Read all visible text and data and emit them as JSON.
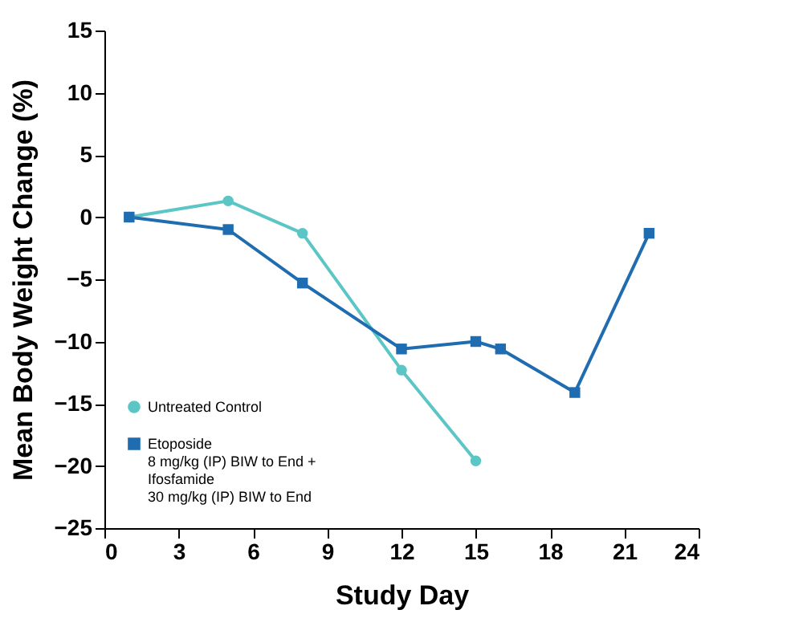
{
  "chart_data": {
    "type": "line",
    "xlabel": "Study Day",
    "ylabel": "Mean Body Weight Change (%)",
    "xlim": [
      0,
      24
    ],
    "xticks": [
      0,
      3,
      6,
      9,
      12,
      15,
      18,
      21,
      24
    ],
    "ylim": [
      -25,
      15
    ],
    "yticks": [
      -25,
      -20,
      -15,
      -10,
      -5,
      0,
      5,
      10,
      15
    ],
    "grid": false,
    "legend": "bottom left",
    "line_style": "solid",
    "series": [
      {
        "name": "Untreated Control",
        "color": "#5cc5c5",
        "marker": "circle",
        "x": [
          1,
          5,
          8,
          12,
          15
        ],
        "values": [
          0,
          1.3,
          -1.3,
          -12.3,
          -19.6
        ]
      },
      {
        "name": "Etoposide\n8 mg/kg (IP) BIW to End +\nIfosfamide\n30 mg/kg (IP) BIW to End",
        "color": "#1f6cb0",
        "marker": "square",
        "x": [
          1,
          5,
          8,
          12,
          15,
          16,
          19,
          22
        ],
        "values": [
          0,
          -1,
          -5.3,
          -10.6,
          -10,
          -10.6,
          -14.1,
          -1.3
        ]
      }
    ]
  }
}
